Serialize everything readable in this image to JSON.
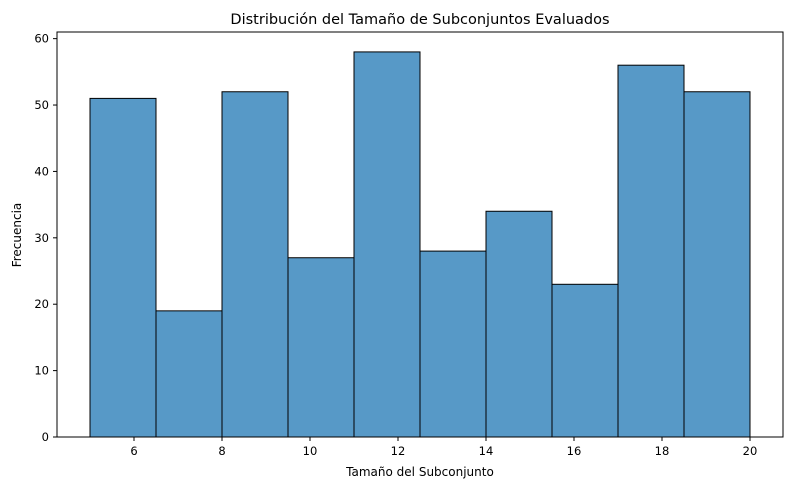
{
  "chart_data": {
    "type": "bar",
    "subtype": "histogram",
    "title": "Distribución del Tamaño de Subconjuntos Evaluados",
    "xlabel": "Tamaño del Subconjunto",
    "ylabel": "Frecuencia",
    "bins": [
      {
        "start": 5.0,
        "end": 6.5,
        "count": 51
      },
      {
        "start": 6.5,
        "end": 8.0,
        "count": 19
      },
      {
        "start": 8.0,
        "end": 9.5,
        "count": 52
      },
      {
        "start": 9.5,
        "end": 11.0,
        "count": 27
      },
      {
        "start": 11.0,
        "end": 12.5,
        "count": 58
      },
      {
        "start": 12.5,
        "end": 14.0,
        "count": 28
      },
      {
        "start": 14.0,
        "end": 15.5,
        "count": 34
      },
      {
        "start": 15.5,
        "end": 17.0,
        "count": 23
      },
      {
        "start": 17.0,
        "end": 18.5,
        "count": 56
      },
      {
        "start": 18.5,
        "end": 20.0,
        "count": 52
      }
    ],
    "xlim": [
      4.25,
      20.75
    ],
    "ylim": [
      0,
      61
    ],
    "xticks": [
      6,
      8,
      10,
      12,
      14,
      16,
      18,
      20
    ],
    "yticks": [
      0,
      10,
      20,
      30,
      40,
      50,
      60
    ],
    "grid": false,
    "legend": "none",
    "colors": {
      "bar_fill": "#5799c7",
      "bar_edge": "#000000"
    }
  }
}
